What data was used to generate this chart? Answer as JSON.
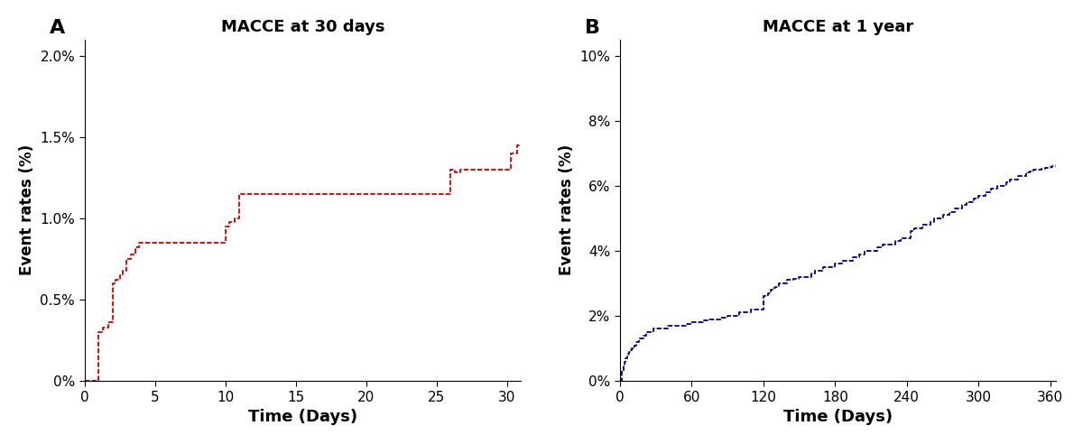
{
  "panel_A": {
    "title": "MACCE at 30 days",
    "label": "A",
    "xlabel": "Time (Days)",
    "ylabel": "Event rates (%)",
    "color": "#CC0000",
    "xlim": [
      0,
      31
    ],
    "ylim": [
      0,
      0.021
    ],
    "xticks": [
      0,
      5,
      10,
      15,
      20,
      25,
      30
    ],
    "yticks": [
      0.0,
      0.005,
      0.01,
      0.015,
      0.02
    ],
    "ytick_labels": [
      "0%",
      "0.5%",
      "1.0%",
      "1.5%",
      "2.0%"
    ],
    "events_x": [
      1,
      1.3,
      1.7,
      2.0,
      2.2,
      2.5,
      2.7,
      3.0,
      3.3,
      3.6,
      3.9,
      4.2,
      9.5,
      10.0,
      10.3,
      10.7,
      11.0,
      11.5,
      12.0,
      12.5,
      13.0,
      25.5,
      26.0,
      26.3,
      26.7,
      27.0,
      27.5,
      30.0,
      30.3,
      30.7
    ],
    "events_y": [
      0.003,
      0.0033,
      0.0036,
      0.006,
      0.0062,
      0.0065,
      0.0068,
      0.0075,
      0.0078,
      0.0082,
      0.0085,
      0.0085,
      0.0085,
      0.0095,
      0.0098,
      0.01,
      0.0115,
      0.0115,
      0.0115,
      0.0115,
      0.0115,
      0.0115,
      0.013,
      0.0128,
      0.013,
      0.013,
      0.013,
      0.013,
      0.014,
      0.0145
    ]
  },
  "panel_B": {
    "title": "MACCE at 1 year",
    "label": "B",
    "xlabel": "Time (Days)",
    "ylabel": "Event rates (%)",
    "color": "#000080",
    "xlim": [
      0,
      365
    ],
    "ylim": [
      0,
      0.105
    ],
    "xticks": [
      0,
      60,
      120,
      180,
      240,
      300,
      360
    ],
    "yticks": [
      0.0,
      0.02,
      0.04,
      0.06,
      0.08,
      0.1
    ],
    "ytick_labels": [
      "0%",
      "2%",
      "4%",
      "6%",
      "8%",
      "10%"
    ],
    "events_x": [
      2,
      3,
      4,
      5,
      6,
      7,
      8,
      9,
      10,
      12,
      14,
      16,
      18,
      20,
      22,
      25,
      28,
      30,
      35,
      40,
      45,
      50,
      55,
      60,
      65,
      70,
      75,
      80,
      85,
      90,
      95,
      100,
      105,
      110,
      115,
      120,
      122,
      124,
      126,
      128,
      130,
      133,
      136,
      140,
      145,
      150,
      155,
      160,
      163,
      166,
      170,
      173,
      176,
      180,
      183,
      186,
      190,
      195,
      200,
      205,
      210,
      215,
      220,
      225,
      230,
      235,
      240,
      243,
      246,
      250,
      253,
      256,
      260,
      263,
      266,
      270,
      273,
      276,
      280,
      283,
      286,
      290,
      293,
      296,
      300,
      303,
      306,
      310,
      313,
      316,
      320,
      323,
      326,
      330,
      333,
      336,
      340,
      343,
      346,
      350,
      353,
      356,
      360,
      362
    ],
    "events_y": [
      0.003,
      0.005,
      0.006,
      0.007,
      0.008,
      0.0085,
      0.009,
      0.0095,
      0.01,
      0.011,
      0.012,
      0.013,
      0.013,
      0.014,
      0.015,
      0.015,
      0.016,
      0.016,
      0.016,
      0.017,
      0.017,
      0.017,
      0.0175,
      0.018,
      0.0182,
      0.0185,
      0.019,
      0.019,
      0.0195,
      0.02,
      0.02,
      0.021,
      0.021,
      0.022,
      0.022,
      0.026,
      0.0265,
      0.027,
      0.028,
      0.0285,
      0.029,
      0.03,
      0.03,
      0.031,
      0.0315,
      0.032,
      0.032,
      0.033,
      0.034,
      0.034,
      0.035,
      0.035,
      0.035,
      0.036,
      0.036,
      0.037,
      0.037,
      0.038,
      0.039,
      0.04,
      0.04,
      0.041,
      0.042,
      0.042,
      0.043,
      0.044,
      0.044,
      0.046,
      0.047,
      0.047,
      0.048,
      0.048,
      0.049,
      0.05,
      0.05,
      0.051,
      0.051,
      0.052,
      0.053,
      0.053,
      0.054,
      0.055,
      0.055,
      0.056,
      0.057,
      0.057,
      0.058,
      0.059,
      0.059,
      0.06,
      0.06,
      0.061,
      0.062,
      0.062,
      0.063,
      0.063,
      0.064,
      0.0645,
      0.065,
      0.065,
      0.0652,
      0.0655,
      0.0658,
      0.066
    ]
  },
  "fig_width": 12.0,
  "fig_height": 4.92,
  "dpi": 100
}
